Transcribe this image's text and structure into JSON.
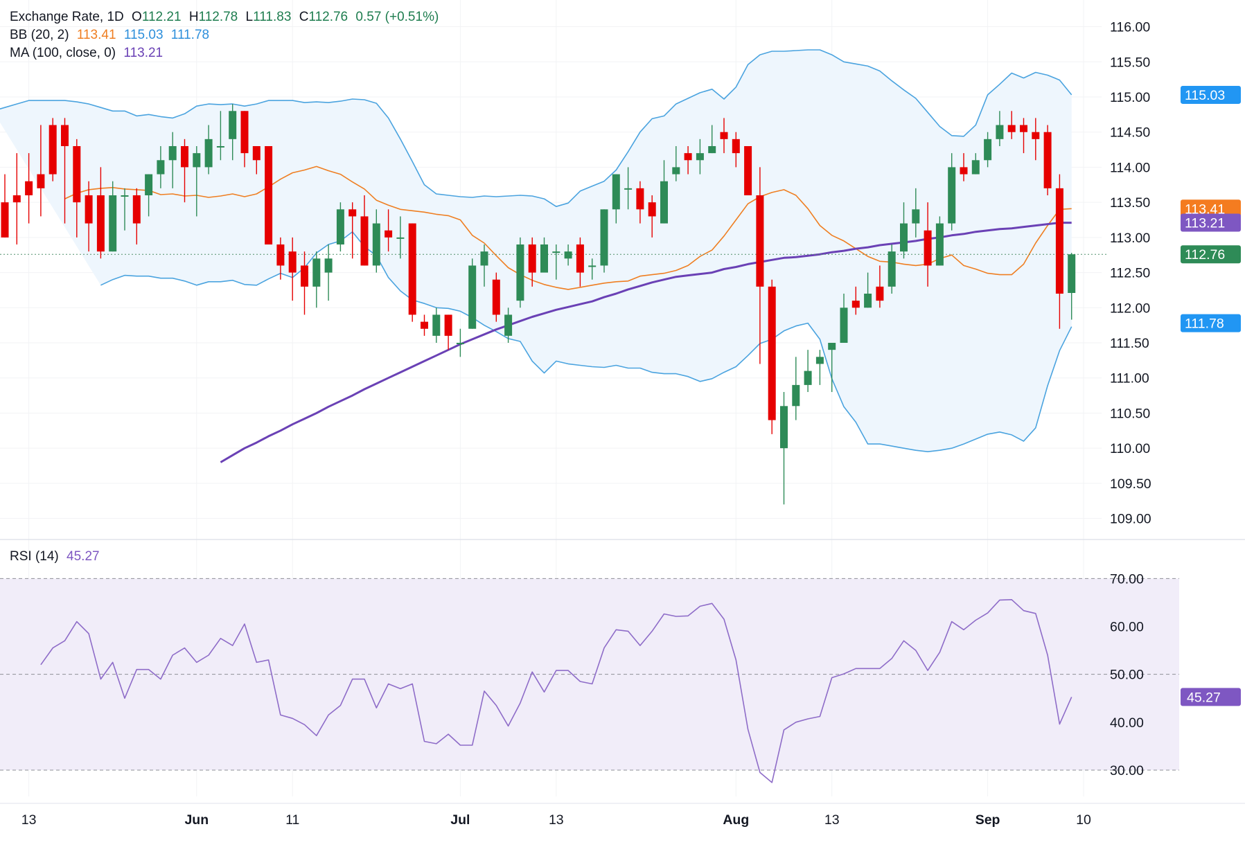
{
  "legend": {
    "title": "Exchange Rate, 1D",
    "open_label": "O",
    "open": "112.21",
    "high_label": "H",
    "high": "112.78",
    "low_label": "L",
    "low": "111.83",
    "close_label": "C",
    "close": "112.76",
    "change": "0.57 (+0.51%)",
    "bb_label": "BB (20, 2)",
    "bb_mid": "113.41",
    "bb_upper": "115.03",
    "bb_lower": "111.78",
    "ma_label": "MA (100, close, 0)",
    "ma_value": "113.21",
    "rsi_label": "RSI (14)",
    "rsi_value": "45.27"
  },
  "colors": {
    "up": "#2e8b57",
    "down": "#e60000",
    "bb_band": "#4aa3df",
    "bb_mid": "#ef7e21",
    "bb_fill": "#eef6fd",
    "ma": "#6a41b5",
    "rsi_line": "#8e6cc8",
    "rsi_fill": "#f1edf9",
    "price_tag_last": "#2e8b57",
    "price_tag_bb_mid": "#f47c20",
    "price_tag_ma": "#7e57c2",
    "price_tag_bb": "#2196f3",
    "price_tag_rsi": "#7e57c2"
  },
  "chart_data": {
    "type": "candlestick",
    "price_axis": {
      "min": 108.73,
      "max": 116.38,
      "ticks": [
        "116.00",
        "115.50",
        "115.00",
        "114.50",
        "114.00",
        "113.50",
        "113.00",
        "112.50",
        "112.00",
        "111.50",
        "111.00",
        "110.50",
        "110.00",
        "109.50",
        "109.00"
      ]
    },
    "rsi_axis": {
      "min": 24.5,
      "max": 78,
      "ticks": [
        "70.00",
        "60.00",
        "50.00",
        "40.00",
        "30.00"
      ],
      "levels": [
        70,
        50,
        30
      ]
    },
    "x_axis_labels": [
      {
        "label": "13",
        "index": 2
      },
      {
        "label": "Jun",
        "index": 16
      },
      {
        "label": "11",
        "index": 24
      },
      {
        "label": "Jul",
        "index": 38
      },
      {
        "label": "13",
        "index": 46
      },
      {
        "label": "Aug",
        "index": 61
      },
      {
        "label": "13",
        "index": 69
      },
      {
        "label": "Sep",
        "index": 82
      },
      {
        "label": "10",
        "index": 90
      }
    ],
    "candles": [
      [
        113.5,
        113.0,
        113.9,
        113.0
      ],
      [
        113.6,
        113.5,
        114.2,
        112.9
      ],
      [
        113.8,
        113.6,
        114.2,
        113.2
      ],
      [
        113.9,
        113.7,
        114.6,
        113.3
      ],
      [
        114.6,
        113.9,
        114.7,
        113.8
      ],
      [
        114.6,
        114.3,
        114.7,
        113.2
      ],
      [
        114.3,
        113.5,
        114.4,
        113.0
      ],
      [
        113.6,
        113.2,
        113.8,
        112.8
      ],
      [
        113.6,
        112.8,
        114.0,
        112.7
      ],
      [
        112.8,
        113.6,
        113.8,
        112.8
      ],
      [
        113.6,
        113.6,
        113.7,
        113.1
      ],
      [
        113.6,
        113.2,
        113.7,
        112.9
      ],
      [
        113.6,
        113.9,
        113.9,
        113.3
      ],
      [
        113.9,
        114.1,
        114.3,
        113.7
      ],
      [
        114.1,
        114.3,
        114.5,
        113.7
      ],
      [
        114.3,
        114.0,
        114.4,
        113.5
      ],
      [
        114.0,
        114.2,
        114.3,
        113.3
      ],
      [
        114.0,
        114.4,
        114.6,
        113.9
      ],
      [
        114.3,
        114.3,
        114.8,
        114.1
      ],
      [
        114.4,
        114.8,
        114.9,
        114.1
      ],
      [
        114.8,
        114.2,
        114.8,
        114.0
      ],
      [
        114.3,
        114.1,
        114.3,
        113.9
      ],
      [
        114.3,
        112.9,
        114.3,
        112.9
      ],
      [
        112.9,
        112.6,
        113.0,
        112.4
      ],
      [
        112.8,
        112.5,
        113.0,
        112.1
      ],
      [
        112.6,
        112.3,
        112.8,
        111.9
      ],
      [
        112.3,
        112.7,
        112.8,
        112.0
      ],
      [
        112.5,
        112.7,
        112.9,
        112.1
      ],
      [
        112.9,
        113.4,
        113.5,
        112.8
      ],
      [
        113.4,
        113.3,
        113.5,
        112.7
      ],
      [
        113.3,
        112.6,
        113.6,
        112.6
      ],
      [
        112.6,
        113.2,
        113.4,
        112.5
      ],
      [
        113.1,
        113.0,
        113.4,
        112.8
      ],
      [
        113.0,
        113.0,
        113.3,
        112.7
      ],
      [
        113.2,
        111.9,
        113.2,
        111.8
      ],
      [
        111.8,
        111.7,
        111.9,
        111.6
      ],
      [
        111.6,
        111.9,
        112.0,
        111.5
      ],
      [
        111.9,
        111.6,
        111.9,
        111.4
      ],
      [
        111.5,
        111.5,
        111.7,
        111.3
      ],
      [
        111.7,
        112.6,
        112.7,
        111.7
      ],
      [
        112.6,
        112.8,
        112.9,
        112.3
      ],
      [
        112.4,
        111.9,
        112.5,
        111.8
      ],
      [
        111.6,
        111.9,
        112.0,
        111.5
      ],
      [
        112.1,
        112.9,
        113.0,
        112.0
      ],
      [
        112.9,
        112.5,
        113.0,
        112.3
      ],
      [
        112.5,
        112.9,
        113.0,
        112.6
      ],
      [
        112.8,
        112.8,
        112.9,
        112.4
      ],
      [
        112.7,
        112.8,
        112.9,
        112.6
      ],
      [
        112.9,
        112.5,
        113.0,
        112.3
      ],
      [
        112.6,
        112.6,
        112.7,
        112.4
      ],
      [
        112.6,
        113.4,
        113.4,
        112.5
      ],
      [
        113.4,
        113.9,
        113.9,
        113.2
      ],
      [
        113.7,
        113.7,
        114.0,
        113.4
      ],
      [
        113.7,
        113.4,
        113.8,
        113.2
      ],
      [
        113.5,
        113.3,
        113.6,
        113.0
      ],
      [
        113.2,
        113.8,
        114.1,
        113.2
      ],
      [
        113.9,
        114.0,
        114.3,
        113.8
      ],
      [
        114.2,
        114.1,
        114.3,
        113.9
      ],
      [
        114.1,
        114.2,
        114.4,
        113.9
      ],
      [
        114.2,
        114.3,
        114.6,
        114.2
      ],
      [
        114.5,
        114.4,
        114.7,
        114.2
      ],
      [
        114.4,
        114.2,
        114.5,
        114.0
      ],
      [
        114.3,
        113.6,
        114.3,
        113.6
      ],
      [
        113.6,
        112.3,
        114.0,
        111.2
      ],
      [
        112.3,
        110.4,
        112.4,
        110.2
      ],
      [
        110.0,
        110.6,
        110.8,
        109.2
      ],
      [
        110.6,
        110.9,
        111.3,
        110.4
      ],
      [
        110.9,
        111.1,
        111.4,
        110.8
      ],
      [
        111.2,
        111.3,
        111.4,
        110.9
      ],
      [
        111.4,
        111.5,
        111.5,
        110.8
      ],
      [
        111.5,
        112.0,
        112.2,
        111.7
      ],
      [
        112.1,
        112.0,
        112.3,
        111.9
      ],
      [
        112.0,
        112.2,
        112.5,
        112.0
      ],
      [
        112.3,
        112.1,
        112.6,
        112.0
      ],
      [
        112.3,
        112.8,
        112.9,
        112.2
      ],
      [
        112.8,
        113.2,
        113.5,
        112.7
      ],
      [
        113.2,
        113.4,
        113.7,
        113.0
      ],
      [
        113.1,
        112.6,
        113.5,
        112.3
      ],
      [
        112.6,
        113.2,
        113.3,
        112.6
      ],
      [
        113.2,
        114.0,
        114.2,
        113.1
      ],
      [
        114.0,
        113.9,
        114.2,
        113.8
      ],
      [
        113.9,
        114.1,
        114.2,
        113.9
      ],
      [
        114.1,
        114.4,
        114.5,
        114.0
      ],
      [
        114.4,
        114.6,
        114.8,
        114.3
      ],
      [
        114.6,
        114.5,
        114.8,
        114.4
      ],
      [
        114.6,
        114.5,
        114.7,
        114.2
      ],
      [
        114.5,
        114.4,
        114.7,
        114.1
      ],
      [
        114.5,
        113.7,
        114.6,
        113.6
      ],
      [
        113.7,
        112.2,
        113.9,
        111.7
      ],
      [
        112.21,
        112.76,
        112.78,
        111.83
      ]
    ],
    "bb_upper": [
      114.8,
      114.85,
      114.9,
      114.95,
      114.95,
      114.95,
      114.95,
      114.93,
      114.9,
      114.85,
      114.8,
      114.8,
      114.73,
      114.75,
      114.72,
      114.7,
      114.76,
      114.87,
      114.9,
      114.89,
      114.9,
      114.87,
      114.9,
      114.95,
      114.95,
      114.95,
      114.92,
      114.93,
      114.92,
      114.94,
      114.97,
      114.96,
      114.91,
      114.7,
      114.4,
      114.08,
      113.75,
      113.62,
      113.6,
      113.58,
      113.57,
      113.59,
      113.58,
      113.59,
      113.6,
      113.59,
      113.55,
      113.44,
      113.49,
      113.66,
      113.73,
      113.8,
      113.96,
      114.22,
      114.5,
      114.69,
      114.73,
      114.9,
      114.98,
      115.06,
      115.11,
      114.97,
      115.14,
      115.46,
      115.6,
      115.65,
      115.65,
      115.66,
      115.67,
      115.67,
      115.6,
      115.5,
      115.47,
      115.44,
      115.37,
      115.23,
      115.1,
      114.98,
      114.78,
      114.58,
      114.45,
      114.44,
      114.6,
      115.03,
      115.18,
      115.34,
      115.27,
      115.35,
      115.31,
      115.24,
      115.03
    ],
    "bb_mid": [
      113.55,
      113.63,
      113.68,
      113.7,
      113.71,
      113.69,
      113.68,
      113.67,
      113.61,
      113.62,
      113.59,
      113.6,
      113.57,
      113.59,
      113.62,
      113.58,
      113.62,
      113.72,
      113.83,
      113.92,
      113.96,
      114.01,
      113.95,
      113.9,
      113.79,
      113.69,
      113.53,
      113.46,
      113.4,
      113.38,
      113.36,
      113.33,
      113.31,
      113.25,
      113.03,
      112.92,
      112.74,
      112.57,
      112.47,
      112.39,
      112.33,
      112.29,
      112.26,
      112.29,
      112.32,
      112.35,
      112.37,
      112.38,
      112.45,
      112.47,
      112.49,
      112.53,
      112.6,
      112.73,
      112.82,
      113.02,
      113.25,
      113.48,
      113.58,
      113.64,
      113.68,
      113.6,
      113.41,
      113.17,
      113.03,
      112.95,
      112.84,
      112.73,
      112.66,
      112.65,
      112.62,
      112.6,
      112.62,
      112.7,
      112.75,
      112.6,
      112.55,
      112.49,
      112.47,
      112.47,
      112.62,
      112.92,
      113.17,
      113.4,
      113.41
    ],
    "bb_lower": [
      112.32,
      112.4,
      112.46,
      112.45,
      112.45,
      112.42,
      112.42,
      112.38,
      112.32,
      112.37,
      112.37,
      112.39,
      112.33,
      112.32,
      112.41,
      112.49,
      112.43,
      112.57,
      112.78,
      112.9,
      112.95,
      113.08,
      112.87,
      112.74,
      112.43,
      112.24,
      112.11,
      112.06,
      112.0,
      111.99,
      111.95,
      111.86,
      111.75,
      111.66,
      111.56,
      111.52,
      111.24,
      111.07,
      111.24,
      111.2,
      111.18,
      111.16,
      111.15,
      111.18,
      111.14,
      111.14,
      111.08,
      111.06,
      111.06,
      111.02,
      110.95,
      110.99,
      111.08,
      111.16,
      111.32,
      111.49,
      111.55,
      111.67,
      111.74,
      111.78,
      111.55,
      110.99,
      110.59,
      110.37,
      110.06,
      110.06,
      110.03,
      110.0,
      109.97,
      109.95,
      109.97,
      110.0,
      110.06,
      110.13,
      110.2,
      110.23,
      110.19,
      110.1,
      110.29,
      110.89,
      111.39,
      111.73
    ],
    "ma100": [
      109.8,
      109.9,
      110.0,
      110.08,
      110.17,
      110.25,
      110.34,
      110.42,
      110.5,
      110.59,
      110.67,
      110.75,
      110.84,
      110.92,
      111.0,
      111.08,
      111.16,
      111.24,
      111.32,
      111.4,
      111.48,
      111.55,
      111.62,
      111.69,
      111.75,
      111.81,
      111.87,
      111.92,
      111.97,
      112.01,
      112.05,
      112.09,
      112.15,
      112.2,
      112.26,
      112.31,
      112.36,
      112.4,
      112.44,
      112.46,
      112.48,
      112.5,
      112.55,
      112.58,
      112.62,
      112.65,
      112.68,
      112.71,
      112.72,
      112.74,
      112.76,
      112.79,
      112.81,
      112.84,
      112.86,
      112.89,
      112.91,
      112.93,
      112.95,
      112.98,
      113.0,
      113.03,
      113.05,
      113.08,
      113.1,
      113.12,
      113.13,
      113.15,
      113.17,
      113.19,
      113.21,
      113.21
    ],
    "rsi": [
      52,
      55.5,
      57,
      61,
      58.5,
      49,
      52.5,
      45,
      51,
      51,
      49,
      54,
      55.5,
      52.5,
      54,
      57.5,
      56,
      60.5,
      52.5,
      53,
      41.5,
      40.8,
      39.5,
      37.2,
      41.5,
      43.5,
      49,
      49,
      43,
      48,
      47,
      48,
      36,
      35.5,
      37.5,
      35.2,
      35.2,
      46.5,
      43.5,
      39.2,
      44,
      50.5,
      46.3,
      50.8,
      50.8,
      48.5,
      48,
      55.5,
      59.3,
      59,
      56,
      59,
      62.6,
      62.1,
      62.2,
      64.2,
      64.8,
      61.5,
      53,
      38.5,
      29.5,
      27.4,
      38.4,
      40,
      40.7,
      41.2,
      49.3,
      50.1,
      51.2,
      51.2,
      51.2,
      53.3,
      57,
      55,
      50.8,
      54.6,
      61,
      59.3,
      61.3,
      62.8,
      65.5,
      65.6,
      63.3,
      62.7,
      54,
      39.6,
      45.27
    ]
  },
  "tags": {
    "bb_upper": "115.03",
    "bb_mid": "113.41",
    "ma": "113.21",
    "last": "112.76",
    "bb_lower": "111.78",
    "rsi": "45.27"
  }
}
